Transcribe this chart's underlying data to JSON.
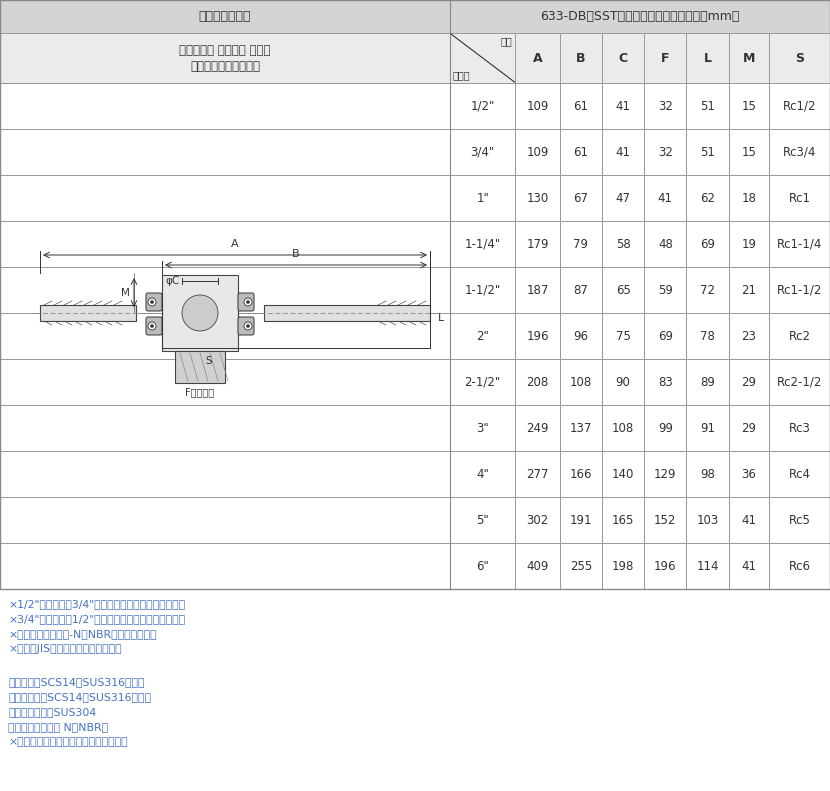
{
  "title_left": "カムアーム継手",
  "title_right": "633-DB　SST　サイズ別寸法表（単位：mm）",
  "product_name_line1": "カムロック カプラー メネジ",
  "product_name_line2": "ステンレスステール製",
  "header_position": "位置",
  "header_size": "サイズ",
  "columns": [
    "A",
    "B",
    "C",
    "F",
    "L",
    "M",
    "S"
  ],
  "rows": [
    [
      "1/2\"",
      "109",
      "61",
      "41",
      "32",
      "51",
      "15",
      "Rc1/2"
    ],
    [
      "3/4\"",
      "109",
      "61",
      "41",
      "32",
      "51",
      "15",
      "Rc3/4"
    ],
    [
      "1\"",
      "130",
      "67",
      "47",
      "41",
      "62",
      "18",
      "Rc1"
    ],
    [
      "1-1/4\"",
      "179",
      "79",
      "58",
      "48",
      "69",
      "19",
      "Rc1-1/4"
    ],
    [
      "1-1/2\"",
      "187",
      "87",
      "65",
      "59",
      "72",
      "21",
      "Rc1-1/2"
    ],
    [
      "2\"",
      "196",
      "96",
      "75",
      "69",
      "78",
      "23",
      "Rc2"
    ],
    [
      "2-1/2\"",
      "208",
      "108",
      "90",
      "83",
      "89",
      "29",
      "Rc2-1/2"
    ],
    [
      "3\"",
      "249",
      "137",
      "108",
      "99",
      "91",
      "29",
      "Rc3"
    ],
    [
      "4\"",
      "277",
      "166",
      "140",
      "129",
      "98",
      "36",
      "Rc4"
    ],
    [
      "5\"",
      "302",
      "191",
      "165",
      "152",
      "103",
      "41",
      "Rc5"
    ],
    [
      "6\"",
      "409",
      "255",
      "198",
      "196",
      "114",
      "41",
      "Rc6"
    ]
  ],
  "notes": [
    "×1/2\"カプラーは3/4\"アダプターにも接続できます。",
    "×3/4\"カプラーは1/2\"アダプターにも接続できます。",
    "×ガスケットはブナ-N（NBR）を標準表備。",
    "×ネジはJIS管用テーパーネジです。"
  ],
  "materials": [
    "継手本体：SCS14（SUS316相当）",
    "カムアーム：SCS14（SUS316相当）",
    "ピン・リング：SUS304",
    "ガスケット：ブナ N（NBR）",
    "×ガスケットは流体により選定できます"
  ],
  "bg_header": "#d4d4d4",
  "bg_subheader": "#ebebeb",
  "bg_white": "#ffffff",
  "border_color": "#999999",
  "text_color": "#333333",
  "note_color": "#4472c4",
  "material_color": "#4472c4"
}
